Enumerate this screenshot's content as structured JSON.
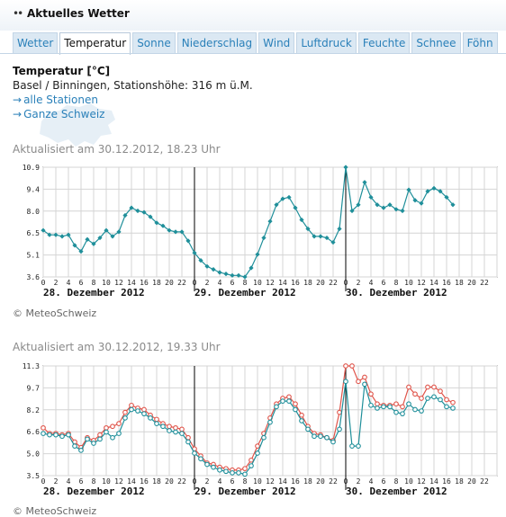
{
  "header": {
    "title": "Aktuelles Wetter",
    "bullets": "••"
  },
  "tabs": [
    {
      "label": "Wetter",
      "active": false
    },
    {
      "label": "Temperatur",
      "active": true
    },
    {
      "label": "Sonne",
      "active": false
    },
    {
      "label": "Niederschlag",
      "active": false
    },
    {
      "label": "Wind",
      "active": false
    },
    {
      "label": "Luftdruck",
      "active": false
    },
    {
      "label": "Feuchte",
      "active": false
    },
    {
      "label": "Schnee",
      "active": false
    },
    {
      "label": "Föhn",
      "active": false
    }
  ],
  "section": {
    "heading": "Temperatur [°C]",
    "station": "Basel / Binningen, Stationshöhe: 316 m ü.M.",
    "links": [
      {
        "arrow": "→",
        "label": "alle Stationen"
      },
      {
        "arrow": "→",
        "label": "Ganze Schweiz"
      }
    ]
  },
  "colors": {
    "teal": "#1f8f9a",
    "red": "#e0544a",
    "link": "#2a80b9"
  },
  "charts": [
    {
      "updated": "Aktualisiert am 30.12.2012, 18.23 Uhr",
      "copyright": "© MeteoSchweiz"
    },
    {
      "updated": "Aktualisiert am 30.12.2012, 19.33 Uhr",
      "copyright": "© MeteoSchweiz"
    }
  ],
  "chart_data": [
    {
      "type": "line",
      "title": "",
      "ylim": [
        3.6,
        10.9
      ],
      "y_ticks": [
        "10.9",
        "9.4",
        "8.0",
        "6.5",
        "5.1",
        "3.6"
      ],
      "x_tick_labels": [
        "0",
        "2",
        "4",
        "6",
        "8",
        "10",
        "12",
        "14",
        "16",
        "18",
        "20",
        "22"
      ],
      "day_labels": [
        "28. Dezember 2012",
        "29. Dezember 2012",
        "30. Dezember 2012"
      ],
      "grid": true,
      "series": [
        {
          "color": "#1f8f9a",
          "points": [
            [
              0,
              6.7
            ],
            [
              1,
              6.4
            ],
            [
              2,
              6.4
            ],
            [
              3,
              6.3
            ],
            [
              4,
              6.4
            ],
            [
              5,
              5.7
            ],
            [
              6,
              5.3
            ],
            [
              7,
              6.1
            ],
            [
              8,
              5.8
            ],
            [
              9,
              6.2
            ],
            [
              10,
              6.7
            ],
            [
              11,
              6.3
            ],
            [
              12,
              6.6
            ],
            [
              13,
              7.7
            ],
            [
              14,
              8.2
            ],
            [
              15,
              8.0
            ],
            [
              16,
              7.9
            ],
            [
              17,
              7.6
            ],
            [
              18,
              7.2
            ],
            [
              19,
              7.0
            ],
            [
              20,
              6.7
            ],
            [
              21,
              6.6
            ],
            [
              22,
              6.6
            ],
            [
              23,
              6.0
            ],
            [
              24,
              5.2
            ],
            [
              25,
              4.7
            ],
            [
              26,
              4.3
            ],
            [
              27,
              4.1
            ],
            [
              28,
              3.9
            ],
            [
              29,
              3.8
            ],
            [
              30,
              3.7
            ],
            [
              31,
              3.7
            ],
            [
              32,
              3.6
            ],
            [
              33,
              4.2
            ],
            [
              34,
              5.1
            ],
            [
              35,
              6.2
            ],
            [
              36,
              7.3
            ],
            [
              37,
              8.4
            ],
            [
              38,
              8.8
            ],
            [
              39,
              8.9
            ],
            [
              40,
              8.2
            ],
            [
              41,
              7.4
            ],
            [
              42,
              6.8
            ],
            [
              43,
              6.3
            ],
            [
              44,
              6.3
            ],
            [
              45,
              6.2
            ],
            [
              46,
              5.9
            ],
            [
              47,
              6.8
            ],
            [
              48,
              10.9
            ],
            [
              49,
              8.0
            ],
            [
              50,
              8.4
            ],
            [
              51,
              9.9
            ],
            [
              52,
              8.9
            ],
            [
              53,
              8.4
            ],
            [
              54,
              8.2
            ],
            [
              55,
              8.4
            ],
            [
              56,
              8.1
            ],
            [
              57,
              8.0
            ],
            [
              58,
              9.4
            ],
            [
              59,
              8.7
            ],
            [
              60,
              8.5
            ],
            [
              61,
              9.3
            ],
            [
              62,
              9.5
            ],
            [
              63,
              9.3
            ],
            [
              64,
              8.9
            ],
            [
              65,
              8.4
            ]
          ]
        }
      ]
    },
    {
      "type": "line",
      "title": "",
      "ylim": [
        3.5,
        11.3
      ],
      "y_ticks": [
        "11.3",
        "9.7",
        "8.2",
        "6.6",
        "5.0",
        "3.5"
      ],
      "x_tick_labels": [
        "0",
        "2",
        "4",
        "6",
        "8",
        "10",
        "12",
        "14",
        "16",
        "18",
        "20",
        "22"
      ],
      "day_labels": [
        "28. Dezember 2012",
        "29. Dezember 2012",
        "30. Dezember 2012"
      ],
      "grid": true,
      "series": [
        {
          "color": "#e0544a",
          "points": [
            [
              0,
              6.9
            ],
            [
              1,
              6.5
            ],
            [
              2,
              6.5
            ],
            [
              3,
              6.4
            ],
            [
              4,
              6.5
            ],
            [
              5,
              5.9
            ],
            [
              6,
              5.5
            ],
            [
              7,
              6.2
            ],
            [
              8,
              6.0
            ],
            [
              9,
              6.4
            ],
            [
              10,
              6.9
            ],
            [
              11,
              7.0
            ],
            [
              12,
              7.2
            ],
            [
              13,
              8.0
            ],
            [
              14,
              8.5
            ],
            [
              15,
              8.3
            ],
            [
              16,
              8.2
            ],
            [
              17,
              7.8
            ],
            [
              18,
              7.5
            ],
            [
              19,
              7.2
            ],
            [
              20,
              7.0
            ],
            [
              21,
              6.9
            ],
            [
              22,
              6.8
            ],
            [
              23,
              6.2
            ],
            [
              24,
              5.4
            ],
            [
              25,
              4.9
            ],
            [
              26,
              4.4
            ],
            [
              27,
              4.3
            ],
            [
              28,
              4.1
            ],
            [
              29,
              4.0
            ],
            [
              30,
              3.9
            ],
            [
              31,
              3.9
            ],
            [
              32,
              4.0
            ],
            [
              33,
              4.6
            ],
            [
              34,
              5.6
            ],
            [
              35,
              6.5
            ],
            [
              36,
              7.6
            ],
            [
              37,
              8.6
            ],
            [
              38,
              9.0
            ],
            [
              39,
              9.1
            ],
            [
              40,
              8.6
            ],
            [
              41,
              7.8
            ],
            [
              42,
              7.0
            ],
            [
              43,
              6.5
            ],
            [
              44,
              6.4
            ],
            [
              45,
              6.2
            ],
            [
              46,
              6.0
            ],
            [
              47,
              8.0
            ],
            [
              48,
              11.3
            ],
            [
              49,
              11.3
            ],
            [
              50,
              10.2
            ],
            [
              51,
              10.5
            ],
            [
              52,
              9.3
            ],
            [
              53,
              8.6
            ],
            [
              54,
              8.5
            ],
            [
              55,
              8.5
            ],
            [
              56,
              8.6
            ],
            [
              57,
              8.4
            ],
            [
              58,
              9.8
            ],
            [
              59,
              9.3
            ],
            [
              60,
              9.0
            ],
            [
              61,
              9.8
            ],
            [
              62,
              9.8
            ],
            [
              63,
              9.5
            ],
            [
              64,
              8.9
            ],
            [
              65,
              8.7
            ]
          ]
        },
        {
          "color": "#1f8f9a",
          "points": [
            [
              0,
              6.5
            ],
            [
              1,
              6.4
            ],
            [
              2,
              6.4
            ],
            [
              3,
              6.3
            ],
            [
              4,
              6.4
            ],
            [
              5,
              5.6
            ],
            [
              6,
              5.3
            ],
            [
              7,
              6.1
            ],
            [
              8,
              5.8
            ],
            [
              9,
              6.1
            ],
            [
              10,
              6.6
            ],
            [
              11,
              6.2
            ],
            [
              12,
              6.5
            ],
            [
              13,
              7.6
            ],
            [
              14,
              8.2
            ],
            [
              15,
              8.1
            ],
            [
              16,
              7.9
            ],
            [
              17,
              7.6
            ],
            [
              18,
              7.2
            ],
            [
              19,
              7.0
            ],
            [
              20,
              6.7
            ],
            [
              21,
              6.6
            ],
            [
              22,
              6.5
            ],
            [
              23,
              5.9
            ],
            [
              24,
              5.1
            ],
            [
              25,
              4.7
            ],
            [
              26,
              4.3
            ],
            [
              27,
              4.1
            ],
            [
              28,
              3.9
            ],
            [
              29,
              3.8
            ],
            [
              30,
              3.7
            ],
            [
              31,
              3.7
            ],
            [
              32,
              3.6
            ],
            [
              33,
              4.2
            ],
            [
              34,
              5.1
            ],
            [
              35,
              6.2
            ],
            [
              36,
              7.3
            ],
            [
              37,
              8.4
            ],
            [
              38,
              8.8
            ],
            [
              39,
              8.8
            ],
            [
              40,
              8.2
            ],
            [
              41,
              7.4
            ],
            [
              42,
              6.8
            ],
            [
              43,
              6.3
            ],
            [
              44,
              6.3
            ],
            [
              45,
              6.2
            ],
            [
              46,
              5.9
            ],
            [
              47,
              6.8
            ],
            [
              48,
              10.2
            ],
            [
              49,
              5.6
            ],
            [
              50,
              5.6
            ],
            [
              51,
              10.0
            ],
            [
              52,
              8.5
            ],
            [
              53,
              8.3
            ],
            [
              54,
              8.4
            ],
            [
              55,
              8.4
            ],
            [
              56,
              8.0
            ],
            [
              57,
              7.9
            ],
            [
              58,
              8.6
            ],
            [
              59,
              8.2
            ],
            [
              60,
              8.1
            ],
            [
              61,
              9.0
            ],
            [
              62,
              9.1
            ],
            [
              63,
              8.9
            ],
            [
              64,
              8.4
            ],
            [
              65,
              8.3
            ]
          ]
        }
      ]
    }
  ]
}
